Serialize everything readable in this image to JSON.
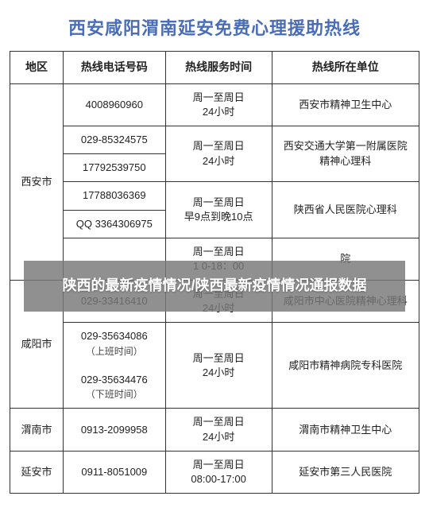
{
  "title": "西安咸阳渭南延安免费心理援助热线",
  "columns": [
    "地区",
    "热线电话号码",
    "热线服务时间",
    "热线所在单位"
  ],
  "rows": [
    {
      "region": "西安市",
      "region_rowspan": 6,
      "phone": "4008960960",
      "phone_rowspan": 1,
      "time": "周一至周日\n24小时",
      "time_rowspan": 1,
      "unit": "西安市精神卫生中心",
      "unit_rowspan": 1
    },
    {
      "phone": "029-85324575",
      "phone_rowspan": 1,
      "time": "周一至周日\n24小时",
      "time_rowspan": 2,
      "unit": "西安交通大学第一附属医院\n精神心理科",
      "unit_rowspan": 2
    },
    {
      "phone": "17792539750",
      "phone_rowspan": 1
    },
    {
      "phone": "17788036369",
      "phone_rowspan": 1,
      "time": "周一至周日\n早9点到晚10点",
      "time_rowspan": 2,
      "unit": "陕西省人民医院心理科",
      "unit_rowspan": 2
    },
    {
      "phone": "QQ 3364306975",
      "phone_rowspan": 1
    },
    {
      "phone": "",
      "phone_rowspan": 1,
      "time": "周一至周日\n1   0-18：00",
      "time_rowspan": 1,
      "unit": "院",
      "unit_rowspan": 1
    },
    {
      "region": "咸阳市",
      "region_rowspan": 2,
      "phone": "029-33416410",
      "phone_rowspan": 1,
      "time": "周一至周日\n24小时",
      "time_rowspan": 1,
      "unit": "咸阳市中心医院精神心理科",
      "unit_rowspan": 1
    },
    {
      "phone": "029-35634086\n（上班时间）\n\n029-35634476\n（下班时间）",
      "phone_rowspan": 1,
      "time": "周一至周日\n24小时",
      "time_rowspan": 1,
      "unit": "咸阳市精神病院专科医院",
      "unit_rowspan": 1
    },
    {
      "region": "渭南市",
      "region_rowspan": 1,
      "phone": "0913-2099958",
      "phone_rowspan": 1,
      "time": "周一至周日\n24小时",
      "time_rowspan": 1,
      "unit": "渭南市精神卫生中心",
      "unit_rowspan": 1
    },
    {
      "region": "延安市",
      "region_rowspan": 1,
      "phone": "0911-8051009",
      "phone_rowspan": 1,
      "time": "周一至周日\n08:00-17:00",
      "time_rowspan": 1,
      "unit": "延安市第三人民医院",
      "unit_rowspan": 1
    }
  ],
  "overlay_text": "陕西的最新疫情情况/陕西最新疫情情况通报数据"
}
